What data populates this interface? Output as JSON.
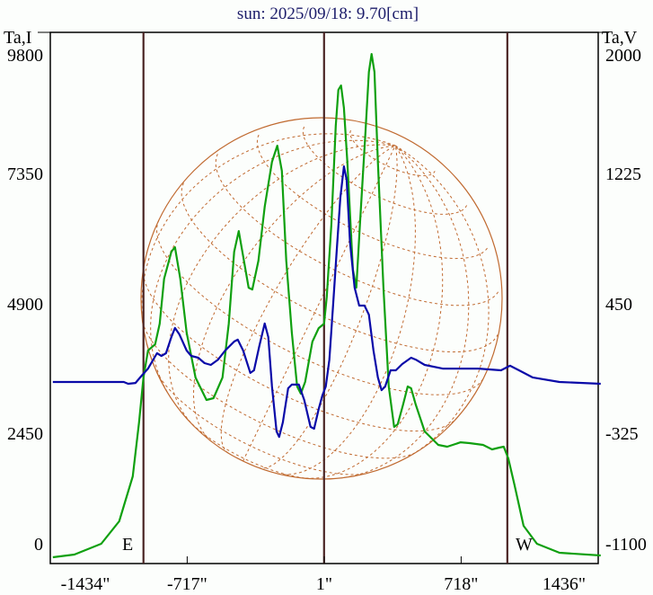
{
  "chart_data": {
    "type": "line",
    "title": "sun: 2025/09/18: 9.70[cm]",
    "ylabel_left": "Ta,I",
    "ylabel_right": "Ta,V",
    "xlabel": "",
    "x_ticks": [
      "-1434\"",
      "-717\"",
      "1\"",
      "718\"",
      "1436\""
    ],
    "x_tick_values": [
      -1434,
      -717,
      1,
      718,
      1436
    ],
    "xlim": [
      -1434,
      1436
    ],
    "left_ticks": [
      "9800",
      "7350",
      "4900",
      "2450",
      "0"
    ],
    "left_ylim": [
      0,
      9800
    ],
    "right_ticks": [
      "2000",
      "1225",
      "450",
      "-325",
      "-1100"
    ],
    "right_ylim": [
      -1100,
      2000
    ],
    "limb_markers": {
      "east": "E",
      "west": "W"
    },
    "limb_x": [
      -946,
      960
    ],
    "center_x": 0,
    "colors": {
      "intensity": "#10a010",
      "polarization": "#0a0aa8",
      "grid": "#c06a30",
      "markers": "#4a2424",
      "title": "#1c1c6a"
    },
    "series": [
      {
        "name": "Ta,I",
        "axis": "left",
        "x": [
          -1421,
          -1308,
          -1167,
          -1073,
          -1002,
          -969,
          -946,
          -922,
          -885,
          -861,
          -838,
          -800,
          -781,
          -753,
          -720,
          -673,
          -616,
          -579,
          -532,
          -499,
          -471,
          -447,
          -424,
          -395,
          -376,
          -344,
          -311,
          -273,
          -245,
          -221,
          -198,
          -169,
          -141,
          -122,
          -99,
          -61,
          -28,
          0,
          14,
          38,
          61,
          75,
          89,
          104,
          122,
          151,
          169,
          188,
          216,
          235,
          249,
          264,
          282,
          311,
          339,
          367,
          386,
          414,
          438,
          456,
          480,
          527,
          598,
          645,
          715,
          762,
          833,
          880,
          918,
          941,
          965,
          998,
          1045,
          1115,
          1233,
          1449
        ],
        "y": [
          102,
          153,
          357,
          782,
          1633,
          2654,
          3504,
          4015,
          4133,
          4524,
          5375,
          5885,
          5970,
          5375,
          4354,
          3504,
          3079,
          3113,
          3504,
          4524,
          5885,
          6276,
          5800,
          5205,
          5171,
          5715,
          6736,
          7586,
          7892,
          7416,
          5715,
          4354,
          3334,
          3198,
          3419,
          4184,
          4439,
          4524,
          5035,
          6396,
          8267,
          8947,
          9032,
          8607,
          7586,
          5545,
          5205,
          6396,
          8097,
          9288,
          9628,
          9288,
          7586,
          5205,
          3334,
          2569,
          2620,
          2994,
          3334,
          3300,
          2994,
          2484,
          2228,
          2194,
          2279,
          2262,
          2228,
          2143,
          2177,
          2194,
          1973,
          1463,
          697,
          357,
          187,
          136
        ]
      },
      {
        "name": "Ta,V",
        "axis": "right",
        "x": [
          -1421,
          -1049,
          -1026,
          -988,
          -955,
          -922,
          -875,
          -852,
          -828,
          -800,
          -781,
          -758,
          -720,
          -696,
          -659,
          -626,
          -593,
          -555,
          -518,
          -471,
          -452,
          -424,
          -386,
          -367,
          -339,
          -311,
          -292,
          -273,
          -249,
          -235,
          -216,
          -188,
          -169,
          -132,
          -104,
          -71,
          -52,
          -28,
          -9,
          9,
          28,
          47,
          66,
          85,
          104,
          118,
          136,
          160,
          184,
          212,
          235,
          259,
          282,
          301,
          320,
          348,
          376,
          409,
          456,
          480,
          527,
          621,
          715,
          809,
          927,
          974,
          1021,
          1092,
          1233,
          1449
        ],
        "y": [
          -18,
          -18,
          -29,
          -24,
          20,
          62,
          154,
          138,
          154,
          251,
          305,
          267,
          170,
          138,
          127,
          95,
          84,
          116,
          170,
          224,
          235,
          170,
          36,
          52,
          197,
          332,
          251,
          -45,
          -314,
          -347,
          -260,
          -56,
          -34,
          -34,
          -126,
          -287,
          -298,
          -180,
          -99,
          -45,
          116,
          439,
          762,
          1085,
          1273,
          1193,
          816,
          547,
          439,
          439,
          385,
          170,
          9,
          -67,
          -45,
          52,
          52,
          89,
          127,
          116,
          84,
          62,
          62,
          62,
          52,
          79,
          52,
          9,
          -18,
          -29
        ]
      }
    ],
    "grid": false,
    "legend": "none"
  }
}
